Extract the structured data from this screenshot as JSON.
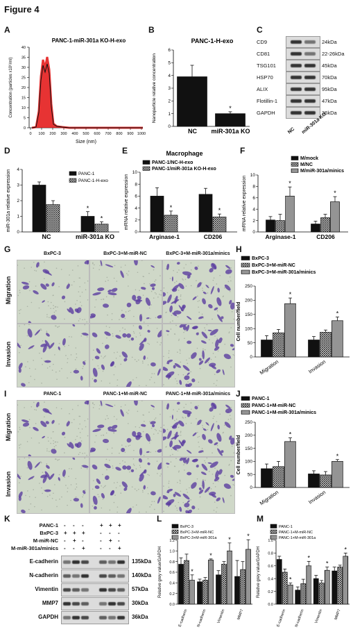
{
  "figure_title": "Figure 4",
  "panel_letters": {
    "A": "A",
    "B": "B",
    "C": "C",
    "D": "D",
    "E": "E",
    "F": "F",
    "G": "G",
    "H": "H",
    "I": "I",
    "J": "J",
    "K": "K",
    "L": "L",
    "M": "M"
  },
  "panelA": {
    "title": "PANC-1-miR-301a KO-H-exo",
    "ylabel": "Concentration (particles x10⁶/ml)",
    "xlabel": "Size (nm)",
    "xticks": [
      "0",
      "100",
      "200",
      "300",
      "400",
      "500",
      "600",
      "700",
      "800",
      "900",
      "1000"
    ],
    "yticks": [
      "0",
      "5",
      "10",
      "15",
      "20",
      "25",
      "30",
      "35",
      "40"
    ]
  },
  "panelB": {
    "title": "PANC-1-H-exo",
    "ylabel": "Nanoparticle relative concentration",
    "yticks": [
      "0",
      "1",
      "2",
      "3",
      "4",
      "5",
      "6"
    ],
    "categories": [
      "NC",
      "miR-301a KO"
    ],
    "star": "*"
  },
  "panelC": {
    "rows": [
      [
        "CD9",
        "24kDa"
      ],
      [
        "CD81",
        "22-26kDa"
      ],
      [
        "TSG101",
        "45kDa"
      ],
      [
        "HSP70",
        "70kDa"
      ],
      [
        "ALIX",
        "95kDa"
      ],
      [
        "Flotillin-1",
        "47kDa"
      ],
      [
        "GAPDH",
        "36kDa"
      ]
    ],
    "lanes": [
      "NC",
      "miR-301a KO"
    ]
  },
  "panelD": {
    "ylabel": "miR-301a relative expression",
    "yticks": [
      "0",
      "1",
      "2",
      "3",
      "4"
    ],
    "categories": [
      "NC",
      "miR-301a KO"
    ],
    "legend": [
      "PANC-1",
      "PANC-1-H-exo"
    ],
    "star": "*"
  },
  "panelE": {
    "title": "Macrophage",
    "ylabel": "mRNA relative expression",
    "yticks": [
      "0",
      "2",
      "4",
      "6",
      "8",
      "10"
    ],
    "categories": [
      "Arginase-1",
      "CD206"
    ],
    "legend": [
      "PANC-1/NC-H-exo",
      "PANC-1/miR-301a KO-H-exo"
    ],
    "star": "*"
  },
  "panelF": {
    "ylabel": "mRNA relative expression",
    "yticks": [
      "0",
      "2",
      "4",
      "6",
      "8",
      "10"
    ],
    "categories": [
      "Arginase-1",
      "CD206"
    ],
    "legend": [
      "M/mock",
      "M/NC",
      "M/miR-301a/minics"
    ],
    "star": "*"
  },
  "panelG": {
    "cols": [
      "BxPC-3",
      "BxPC-3+M-miR-NC",
      "BxPC-3+M-miR-301a/minics"
    ],
    "rows": [
      "Migration",
      "Invasion"
    ]
  },
  "panelH": {
    "ylabel": "Cell number/field",
    "yticks": [
      "0",
      "50",
      "100",
      "150",
      "200",
      "250"
    ],
    "categories": [
      "Migration",
      "Invasion"
    ],
    "legend": [
      "BxPC-3",
      "BxPC-3+M-miR-NC",
      "BxPC-3+M-miR-301a/minics"
    ],
    "star": "*"
  },
  "panelI": {
    "cols": [
      "PANC-1",
      "PANC-1+M-miR-NC",
      "PANC-1+M-miR-301a/minics"
    ],
    "rows": [
      "Migration",
      "Invasion"
    ]
  },
  "panelJ": {
    "ylabel": "Cell number/field",
    "yticks": [
      "0",
      "50",
      "100",
      "150",
      "200",
      "250"
    ],
    "categories": [
      "Migration",
      "Invasion"
    ],
    "legend": [
      "PANC-1",
      "PANC-1+M-miR-NC",
      "PANC-1+M-miR-301a/minics"
    ],
    "star": "*"
  },
  "panelK": {
    "conditions": [
      [
        "PANC-1",
        "-",
        "-",
        "-",
        "+",
        "+",
        "+"
      ],
      [
        "BxPC-3",
        "+",
        "+",
        "+",
        "-",
        "-",
        "-"
      ],
      [
        "M-miR-NC",
        "-",
        "+",
        "-",
        "-",
        "+",
        "-"
      ],
      [
        "M-miR-301a/minics",
        "-",
        "-",
        "+",
        "-",
        "-",
        "+"
      ]
    ],
    "blots": [
      [
        "E-cadherin",
        "135kDa"
      ],
      [
        "N-cadherin",
        "140kDa"
      ],
      [
        "Vimentin",
        "57kDa"
      ],
      [
        "MMP7",
        "30kDa"
      ],
      [
        "GAPDH",
        "36kDa"
      ]
    ]
  },
  "panelL": {
    "ylabel": "Relative grey value/GAPDH",
    "yticks": [
      "0.0",
      "0.2",
      "0.4",
      "0.6",
      "0.8",
      "1.0",
      "1.2"
    ],
    "categories": [
      "E-cadherin",
      "N-cadherin",
      "Vimentin",
      "MMP7"
    ],
    "legend": [
      "BxPC-3",
      "BxPC-3+M-miR-NC",
      "BxPC-3+M-miR-301a"
    ],
    "star": "*"
  },
  "panelM": {
    "ylabel": "Relative grey value/GAPDH",
    "yticks": [
      "0.0",
      "0.2",
      "0.4",
      "0.6",
      "0.8",
      "1.0"
    ],
    "categories": [
      "E-cadherin",
      "N-cadherin",
      "Vimentin",
      "MMP7"
    ],
    "legend": [
      "PANC-1",
      "PANC-1+M-miR-NC",
      "PANC-1+M-miR-301a"
    ],
    "star": "*"
  },
  "chart_data": [
    {
      "id": "B",
      "type": "bar",
      "categories": [
        "NC",
        "miR-301a KO"
      ],
      "values": [
        3.9,
        1.0
      ],
      "errors": [
        0.9,
        0.15
      ],
      "ylim": [
        0,
        6
      ],
      "ylabel": "Nanoparticle relative concentration",
      "title": "PANC-1-H-exo"
    },
    {
      "id": "D",
      "type": "bar",
      "categories": [
        "NC",
        "miR-301a KO"
      ],
      "series": [
        {
          "name": "PANC-1",
          "values": [
            3.0,
            1.0
          ],
          "errors": [
            0.2,
            0.3
          ]
        },
        {
          "name": "PANC-1-H-exo",
          "values": [
            1.75,
            0.5
          ],
          "errors": [
            0.25,
            0.15
          ]
        }
      ],
      "ylim": [
        0,
        4
      ],
      "ylabel": "miR-301a relative expression"
    },
    {
      "id": "E",
      "type": "bar",
      "categories": [
        "Arginase-1",
        "CD206"
      ],
      "series": [
        {
          "name": "PANC-1/NC-H-exo",
          "values": [
            6.0,
            6.3
          ],
          "errors": [
            1.4,
            1.0
          ]
        },
        {
          "name": "PANC-1/miR-301a KO-H-exo",
          "values": [
            2.8,
            2.5
          ],
          "errors": [
            0.7,
            0.5
          ]
        }
      ],
      "ylim": [
        0,
        10
      ],
      "ylabel": "mRNA relative expression",
      "title": "Macrophage"
    },
    {
      "id": "F",
      "type": "bar",
      "categories": [
        "Arginase-1",
        "CD206"
      ],
      "series": [
        {
          "name": "M/mock",
          "values": [
            2.1,
            1.4
          ],
          "errors": [
            0.6,
            0.5
          ]
        },
        {
          "name": "M/NC",
          "values": [
            2.0,
            2.5
          ],
          "errors": [
            1.1,
            0.6
          ]
        },
        {
          "name": "M/miR-301a/minics",
          "values": [
            6.3,
            5.3
          ],
          "errors": [
            1.6,
            0.9
          ]
        }
      ],
      "ylim": [
        0,
        10
      ],
      "ylabel": "mRNA relative expression"
    },
    {
      "id": "H",
      "type": "bar",
      "categories": [
        "Migration",
        "Invasion"
      ],
      "series": [
        {
          "name": "BxPC-3",
          "values": [
            60,
            60
          ],
          "errors": [
            15,
            12
          ]
        },
        {
          "name": "BxPC-3+M-miR-NC",
          "values": [
            85,
            87
          ],
          "errors": [
            12,
            8
          ]
        },
        {
          "name": "BxPC-3+M-miR-301a/minics",
          "values": [
            188,
            128
          ],
          "errors": [
            20,
            13
          ]
        }
      ],
      "ylim": [
        0,
        250
      ],
      "ylabel": "Cell number/field"
    },
    {
      "id": "J",
      "type": "bar",
      "categories": [
        "Migration",
        "Invasion"
      ],
      "series": [
        {
          "name": "PANC-1",
          "values": [
            72,
            52
          ],
          "errors": [
            18,
            12
          ]
        },
        {
          "name": "PANC-1+M-miR-NC",
          "values": [
            80,
            48
          ],
          "errors": [
            20,
            13
          ]
        },
        {
          "name": "PANC-1+M-miR-301a/minics",
          "values": [
            176,
            100
          ],
          "errors": [
            14,
            7
          ]
        }
      ],
      "ylim": [
        0,
        250
      ],
      "ylabel": "Cell number/field"
    },
    {
      "id": "L",
      "type": "bar",
      "categories": [
        "E-cadherin",
        "N-cadherin",
        "Vimentin",
        "MMP7"
      ],
      "series": [
        {
          "name": "BxPC-3",
          "values": [
            0.75,
            0.42,
            0.55,
            0.52
          ],
          "errors": [
            0.12,
            0.05,
            0.08,
            0.3
          ]
        },
        {
          "name": "BxPC-3+M-miR-NC",
          "values": [
            0.82,
            0.45,
            0.75,
            0.65
          ],
          "errors": [
            0.12,
            0.05,
            0.05,
            0.15
          ]
        },
        {
          "name": "BxPC-3+M-miR-301a",
          "values": [
            0.45,
            0.83,
            1.0,
            1.03
          ],
          "errors": [
            0.1,
            0.02,
            0.15,
            0.18
          ]
        }
      ],
      "ylim": [
        0,
        1.2
      ],
      "ylabel": "Relative grey value/GAPDH"
    },
    {
      "id": "M",
      "type": "bar",
      "categories": [
        "E-cadherin",
        "N-cadherin",
        "Vimentin",
        "MMP7"
      ],
      "series": [
        {
          "name": "PANC-1",
          "values": [
            0.7,
            0.22,
            0.4,
            0.52
          ],
          "errors": [
            0.05,
            0.05,
            0.05,
            0.06
          ]
        },
        {
          "name": "PANC-1+M-miR-NC",
          "values": [
            0.5,
            0.32,
            0.33,
            0.58
          ],
          "errors": [
            0.05,
            0.07,
            0.04,
            0.03
          ]
        },
        {
          "name": "PANC-1+M-miR-301a",
          "values": [
            0.3,
            0.6,
            0.53,
            0.75
          ],
          "errors": [
            0.03,
            0.07,
            0.05,
            0.05
          ]
        }
      ],
      "ylim": [
        0,
        1.0
      ],
      "ylabel": "Relative grey value/GAPDH"
    }
  ]
}
